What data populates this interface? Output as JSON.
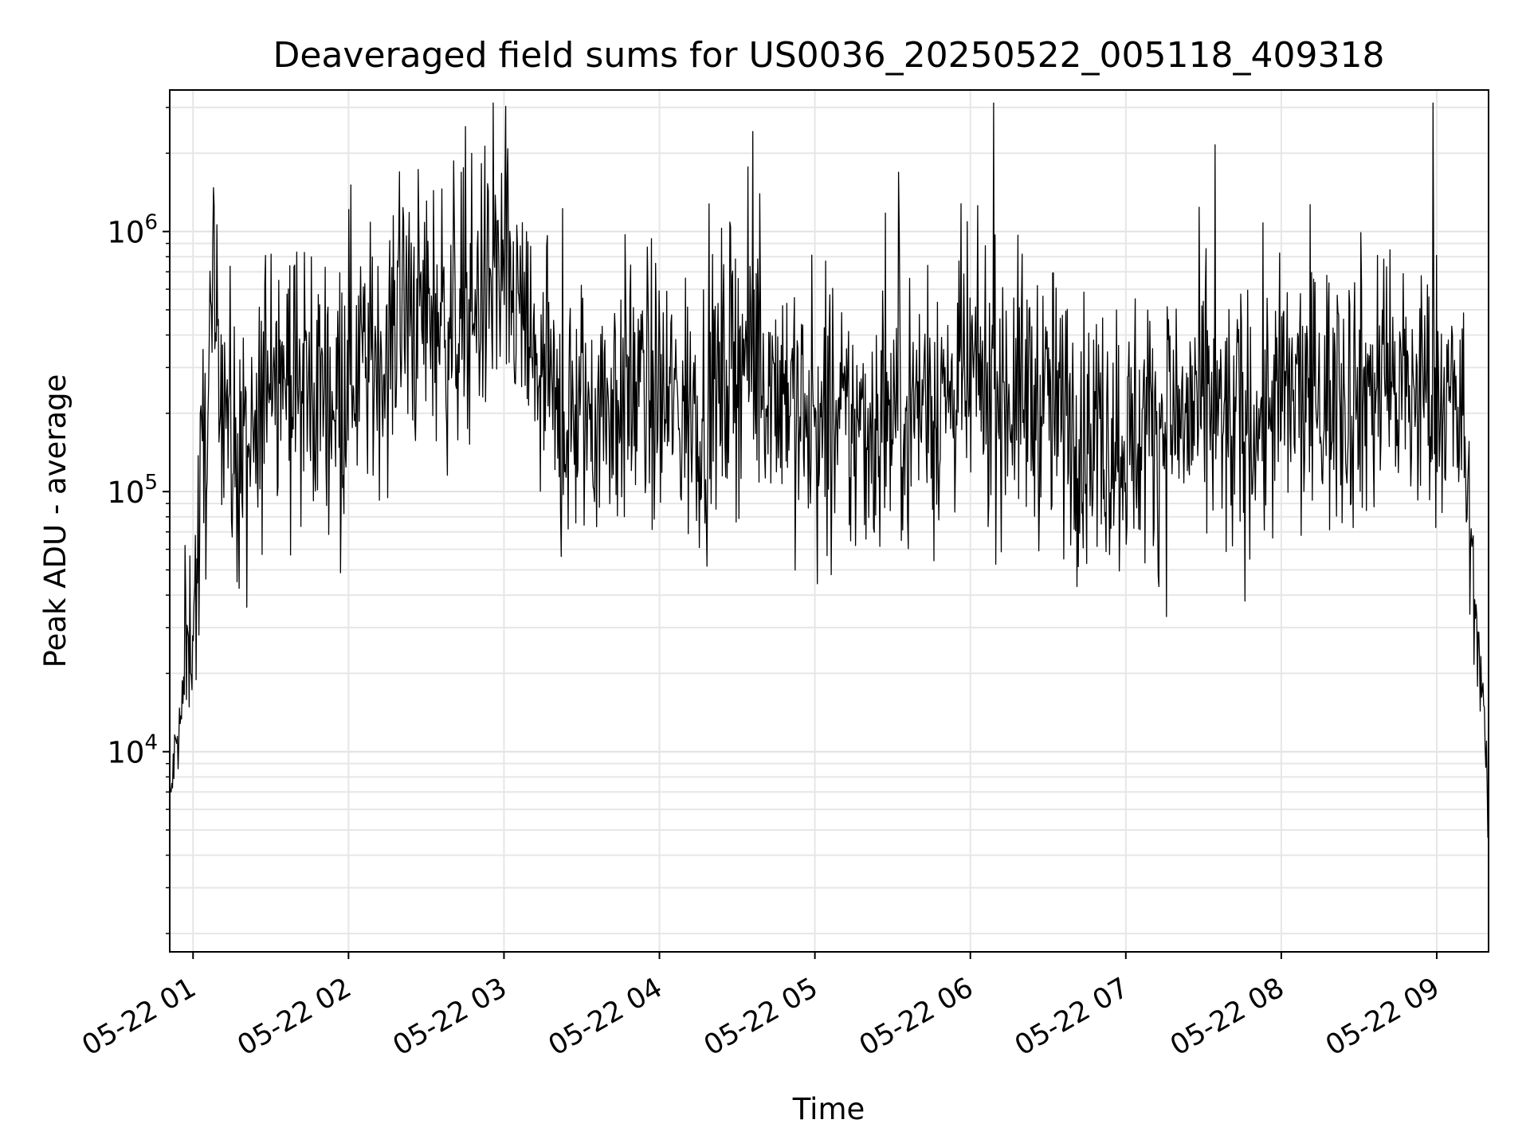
{
  "chart_data": {
    "type": "line",
    "title": "Deaveraged field sums for US0036_20250522_005118_409318",
    "xlabel": "Time",
    "ylabel": "Peak ADU - average",
    "xlim": [
      "2025-05-22 00:51",
      "2025-05-22 09:20"
    ],
    "ylim": [
      1700,
      3500000
    ],
    "yscale": "log",
    "grid": true,
    "line_color": "#000000",
    "x_ticks": [
      {
        "time": "2025-05-22 01:00",
        "label": "05-22 01"
      },
      {
        "time": "2025-05-22 02:00",
        "label": "05-22 02"
      },
      {
        "time": "2025-05-22 03:00",
        "label": "05-22 03"
      },
      {
        "time": "2025-05-22 04:00",
        "label": "05-22 04"
      },
      {
        "time": "2025-05-22 05:00",
        "label": "05-22 05"
      },
      {
        "time": "2025-05-22 06:00",
        "label": "05-22 06"
      },
      {
        "time": "2025-05-22 07:00",
        "label": "05-22 07"
      },
      {
        "time": "2025-05-22 08:00",
        "label": "05-22 08"
      },
      {
        "time": "2025-05-22 09:00",
        "label": "05-22 09"
      }
    ],
    "y_ticks": [
      {
        "value": 10000,
        "base": "10",
        "exp": "4"
      },
      {
        "value": 100000,
        "base": "10",
        "exp": "5"
      },
      {
        "value": 1000000,
        "base": "10",
        "exp": "6"
      }
    ],
    "series": [
      {
        "x": [
          "2025-05-22 00:51",
          "2025-05-22 00:53",
          "2025-05-22 00:55",
          "2025-05-22 00:57",
          "2025-05-22 00:59",
          "2025-05-22 01:01",
          "2025-05-22 01:03",
          "2025-05-22 01:05",
          "2025-05-22 01:07",
          "2025-05-22 01:10",
          "2025-05-22 01:15",
          "2025-05-22 01:20",
          "2025-05-22 01:25",
          "2025-05-22 01:30",
          "2025-05-22 01:35",
          "2025-05-22 01:40",
          "2025-05-22 01:45",
          "2025-05-22 01:50",
          "2025-05-22 01:55",
          "2025-05-22 02:00",
          "2025-05-22 02:10",
          "2025-05-22 02:20",
          "2025-05-22 02:30",
          "2025-05-22 02:40",
          "2025-05-22 02:50",
          "2025-05-22 02:55",
          "2025-05-22 03:00",
          "2025-05-22 03:05",
          "2025-05-22 03:10",
          "2025-05-22 03:20",
          "2025-05-22 03:30",
          "2025-05-22 03:40",
          "2025-05-22 03:50",
          "2025-05-22 04:00",
          "2025-05-22 04:10",
          "2025-05-22 04:20",
          "2025-05-22 04:30",
          "2025-05-22 04:40",
          "2025-05-22 04:50",
          "2025-05-22 05:00",
          "2025-05-22 05:10",
          "2025-05-22 05:20",
          "2025-05-22 05:30",
          "2025-05-22 05:40",
          "2025-05-22 05:50",
          "2025-05-22 06:00",
          "2025-05-22 06:10",
          "2025-05-22 06:20",
          "2025-05-22 06:30",
          "2025-05-22 06:40",
          "2025-05-22 06:50",
          "2025-05-22 07:00",
          "2025-05-22 07:10",
          "2025-05-22 07:20",
          "2025-05-22 07:30",
          "2025-05-22 07:40",
          "2025-05-22 07:50",
          "2025-05-22 08:00",
          "2025-05-22 08:10",
          "2025-05-22 08:20",
          "2025-05-22 08:30",
          "2025-05-22 08:40",
          "2025-05-22 08:50",
          "2025-05-22 09:00",
          "2025-05-22 09:05",
          "2025-05-22 09:10",
          "2025-05-22 09:12",
          "2025-05-22 09:14",
          "2025-05-22 09:16",
          "2025-05-22 09:18",
          "2025-05-22 09:20"
        ],
        "y": [
          6000,
          10000,
          12000,
          20000,
          30000,
          40000,
          90000,
          180000,
          350000,
          400000,
          150000,
          120000,
          140000,
          450000,
          300000,
          250000,
          220000,
          260000,
          240000,
          350000,
          300000,
          450000,
          500000,
          450000,
          550000,
          650000,
          600000,
          500000,
          350000,
          180000,
          200000,
          220000,
          250000,
          230000,
          200000,
          220000,
          350000,
          300000,
          250000,
          150000,
          170000,
          180000,
          200000,
          220000,
          230000,
          260000,
          250000,
          240000,
          220000,
          180000,
          170000,
          160000,
          180000,
          190000,
          200000,
          170000,
          190000,
          220000,
          230000,
          240000,
          250000,
          260000,
          230000,
          250000,
          220000,
          180000,
          100000,
          50000,
          25000,
          15000,
          5000
        ]
      }
    ]
  }
}
